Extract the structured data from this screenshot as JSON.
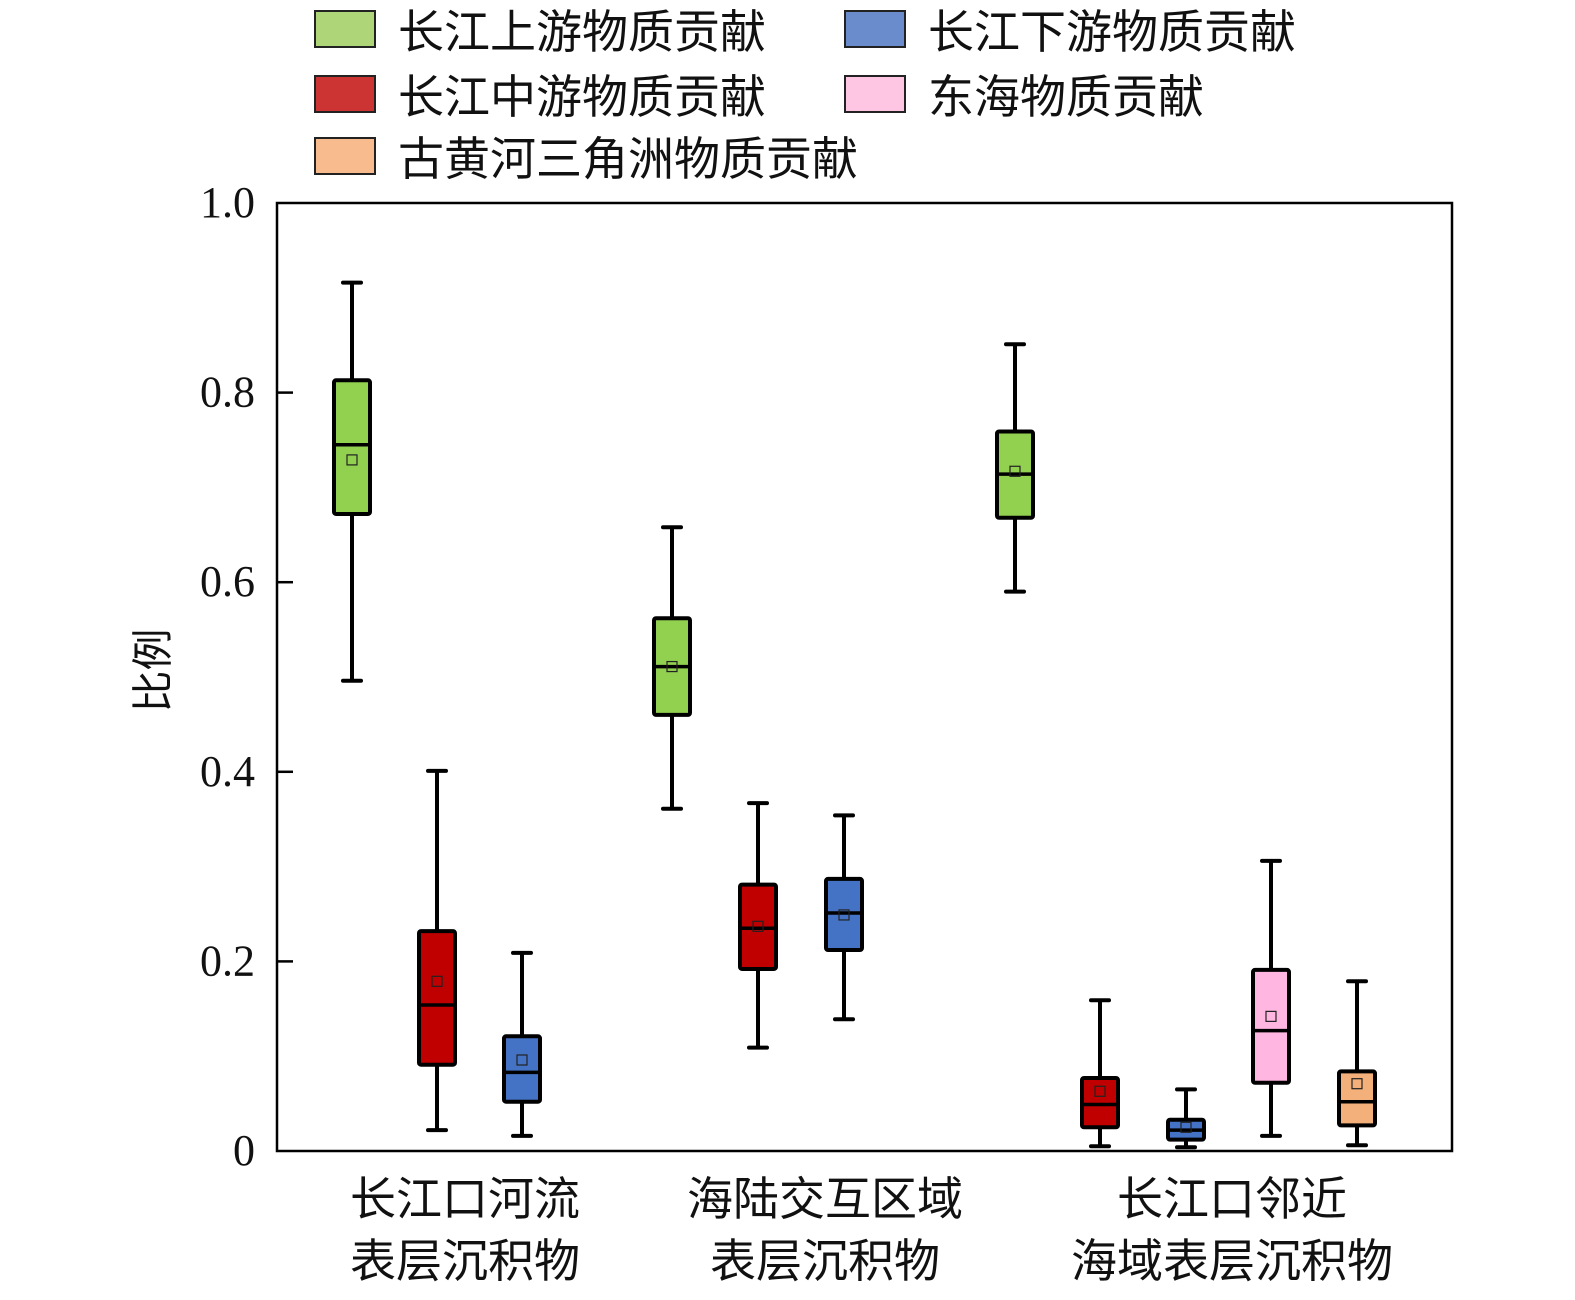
{
  "chart_data": {
    "type": "box",
    "title": "",
    "xlabel": "",
    "ylabel": "比例",
    "ylim": [
      0,
      1.0
    ],
    "yticks": [
      "0",
      "0.2",
      "0.4",
      "0.6",
      "0.8",
      "1.0"
    ],
    "ytick_values": [
      0,
      0.2,
      0.4,
      0.6,
      0.8,
      1.0
    ],
    "grid": false,
    "legend_placement": "top",
    "categories": [
      {
        "line1": "长江口河流",
        "line2": "表层沉积物"
      },
      {
        "line1": "海陆交互区域",
        "line2": "表层沉积物"
      },
      {
        "line1": "长江口邻近",
        "line2": "海域表层沉积物"
      }
    ],
    "series": [
      {
        "name": "长江上游物质贡献",
        "legend_color": "#aed678",
        "color": "#92d050",
        "boxes": [
          {
            "min": 0.496,
            "q1": 0.672,
            "median": 0.745,
            "mean": 0.729,
            "q3": 0.813,
            "max": 0.916
          },
          {
            "min": 0.361,
            "q1": 0.46,
            "median": 0.511,
            "mean": 0.511,
            "q3": 0.562,
            "max": 0.658
          },
          {
            "min": 0.59,
            "q1": 0.668,
            "median": 0.714,
            "mean": 0.717,
            "q3": 0.759,
            "max": 0.851
          }
        ]
      },
      {
        "name": "长江中游物质贡献",
        "legend_color": "#cc3333",
        "color": "#c00000",
        "boxes": [
          {
            "min": 0.022,
            "q1": 0.091,
            "median": 0.154,
            "mean": 0.179,
            "q3": 0.232,
            "max": 0.401
          },
          {
            "min": 0.109,
            "q1": 0.192,
            "median": 0.235,
            "mean": 0.237,
            "q3": 0.281,
            "max": 0.367
          },
          {
            "min": 0.005,
            "q1": 0.025,
            "median": 0.049,
            "mean": 0.063,
            "q3": 0.077,
            "max": 0.159
          }
        ]
      },
      {
        "name": "长江下游物质贡献",
        "legend_color": "#6a8ccc",
        "color": "#4472c4",
        "boxes": [
          {
            "min": 0.016,
            "q1": 0.052,
            "median": 0.083,
            "mean": 0.096,
            "q3": 0.121,
            "max": 0.209
          },
          {
            "min": 0.139,
            "q1": 0.212,
            "median": 0.251,
            "mean": 0.249,
            "q3": 0.287,
            "max": 0.354
          },
          {
            "min": 0.004,
            "q1": 0.012,
            "median": 0.022,
            "mean": 0.025,
            "q3": 0.033,
            "max": 0.065
          }
        ]
      },
      {
        "name": "东海物质贡献",
        "legend_color": "#ffc6e3",
        "color": "#ffb6e0",
        "boxes": [
          null,
          null,
          {
            "min": 0.016,
            "q1": 0.072,
            "median": 0.127,
            "mean": 0.142,
            "q3": 0.191,
            "max": 0.306
          }
        ]
      },
      {
        "name": "古黄河三角洲物质贡献",
        "legend_color": "#f7bb8e",
        "color": "#f4b07a",
        "boxes": [
          null,
          null,
          {
            "min": 0.006,
            "q1": 0.027,
            "median": 0.052,
            "mean": 0.071,
            "q3": 0.084,
            "max": 0.179
          }
        ]
      }
    ]
  }
}
